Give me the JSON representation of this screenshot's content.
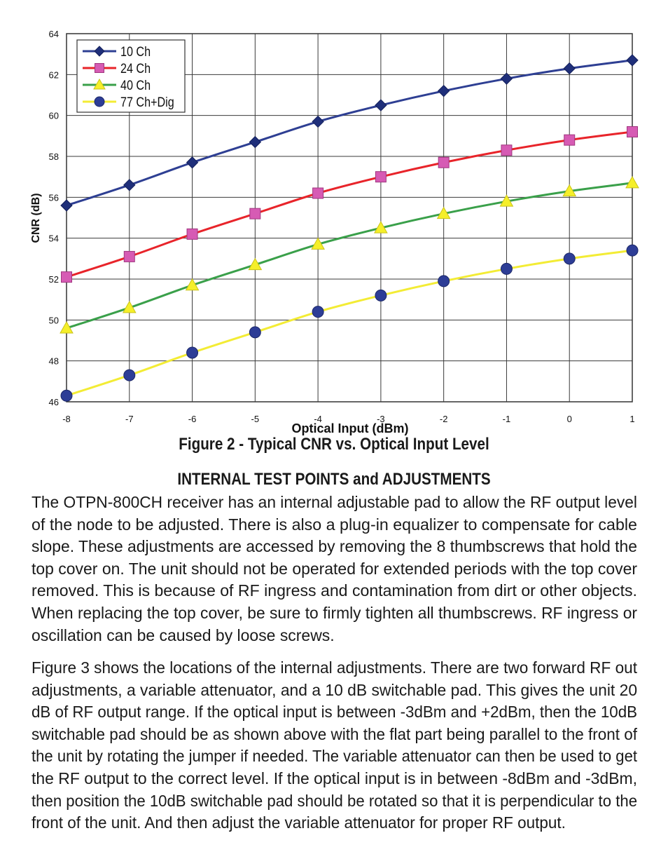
{
  "chart_data": {
    "type": "line",
    "title": "",
    "xlabel": "Optical Input (dBm)",
    "ylabel": "CNR (dB)",
    "x": [
      -8,
      -7,
      -6,
      -5,
      -4,
      -3,
      -2,
      -1,
      0,
      1
    ],
    "xlim": [
      -8,
      1
    ],
    "ylim": [
      46,
      64
    ],
    "xticks": [
      "-8",
      "-7",
      "-6",
      "-5",
      "-4",
      "-3",
      "-2",
      "-1",
      "0",
      "1"
    ],
    "yticks": [
      "46",
      "48",
      "50",
      "52",
      "54",
      "56",
      "58",
      "60",
      "62",
      "64"
    ],
    "grid": true,
    "legend_position": "top-left",
    "series": [
      {
        "name": "10 Ch",
        "color": "#2e3f93",
        "marker": "diamond",
        "marker_color": "#1f2f7a",
        "values": [
          55.6,
          56.6,
          57.7,
          58.7,
          59.7,
          60.5,
          61.2,
          61.8,
          62.3,
          62.7
        ]
      },
      {
        "name": "24 Ch",
        "color": "#e8242a",
        "marker": "square",
        "marker_color": "#d65bb4",
        "values": [
          52.1,
          53.1,
          54.2,
          55.2,
          56.2,
          57.0,
          57.7,
          58.3,
          58.8,
          59.2
        ]
      },
      {
        "name": "40 Ch",
        "color": "#3aa04a",
        "marker": "triangle",
        "marker_color": "#f5ef2a",
        "values": [
          49.6,
          50.6,
          51.7,
          52.7,
          53.7,
          54.5,
          55.2,
          55.8,
          56.3,
          56.7
        ]
      },
      {
        "name": "77 Ch+Dig",
        "color": "#f3ec35",
        "marker": "circle",
        "marker_color": "#2d3d96",
        "values": [
          46.3,
          47.3,
          48.4,
          49.4,
          50.4,
          51.2,
          51.9,
          52.5,
          53.0,
          53.4
        ]
      }
    ]
  },
  "figure_caption": "Figure 2 - Typical CNR vs. Optical Input Level",
  "section_heading": "INTERNAL TEST POINTS and ADJUSTMENTS",
  "paragraph_1": [
    "The OTPN-800CH receiver has an internal adjustable pad to allow the RF output level",
    "of the node to be adjusted. There is also a plug-in equalizer to compensate for cable",
    "slope.  These adjustments are accessed by removing the 8 thumbscrews that hold the",
    "top cover on. The unit should not be operated for extended periods with the top cover",
    "removed. This is because of RF ingress and contamination from dirt or other objects.",
    "When replacing the top cover, be sure to firmly tighten all thumbscrews. RF ingress or",
    "oscillation can be caused by loose screws."
  ],
  "paragraph_2": [
    "Figure 3 shows the locations of the internal adjustments. There are two forward RF out",
    "adjustments, a variable attenuator, and a 10 dB switchable pad. This gives the unit 20",
    "dB of RF output range. If the optical input is between -3dBm and +2dBm, then the 10dB",
    "switchable pad should be as shown above with the flat part being parallel to the front of",
    "the unit by rotating the jumper if needed. The variable attenuator can then be used to get",
    "the RF output to the correct level. If the optical input is in between -8dBm and -3dBm,",
    "then position the 10dB switchable pad should be rotated so that it is perpendicular to the",
    "front of the unit. And then adjust the variable attenuator for proper RF output."
  ]
}
